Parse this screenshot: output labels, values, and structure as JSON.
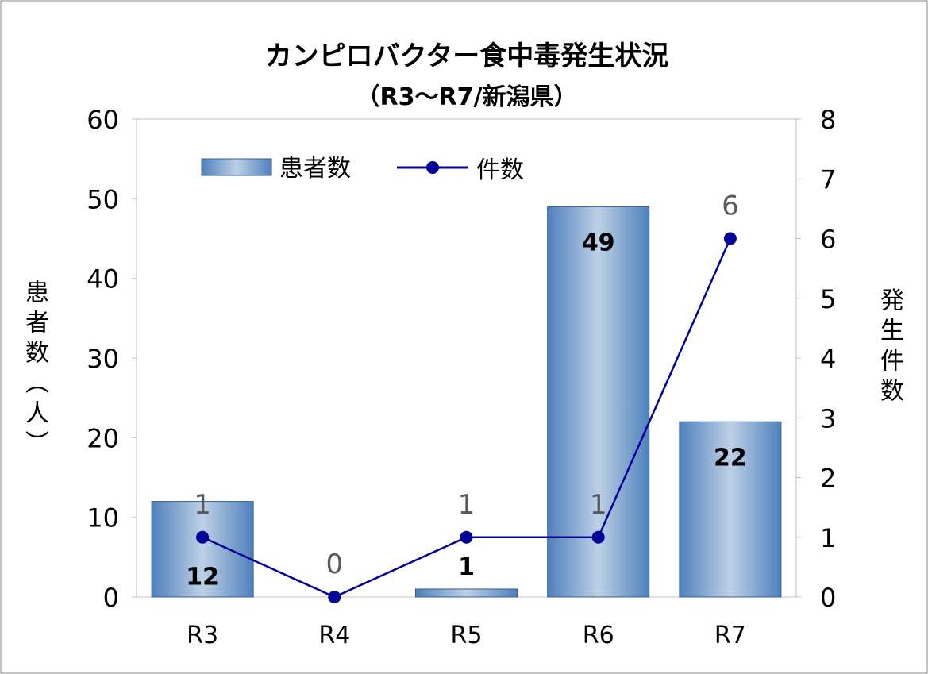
{
  "chart_data": {
    "type": "bar+line",
    "title": "カンピロバクター食中毒発生状況",
    "subtitle": "（R3～R7/新潟県）",
    "categories": [
      "R3",
      "R4",
      "R5",
      "R6",
      "R7"
    ],
    "series": [
      {
        "name": "患者数",
        "type": "bar",
        "axis": "left",
        "values": [
          12,
          0,
          1,
          49,
          22
        ],
        "labels": [
          "12",
          "",
          "1",
          "49",
          "22"
        ]
      },
      {
        "name": "件数",
        "type": "line",
        "axis": "right",
        "values": [
          1,
          0,
          1,
          1,
          6
        ],
        "labels": [
          "1",
          "0",
          "1",
          "1",
          "6"
        ]
      }
    ],
    "ylabel_left": "患者数（人）",
    "ylabel_right": "発生件数",
    "ylim_left": [
      0,
      60
    ],
    "yticks_left": [
      "0",
      "10",
      "20",
      "30",
      "40",
      "50",
      "60"
    ],
    "ylim_right": [
      0,
      8
    ],
    "yticks_right": [
      "0",
      "1",
      "2",
      "3",
      "4",
      "5",
      "6",
      "7",
      "8"
    ],
    "grid": false,
    "legend": "top-left",
    "colors": {
      "bar_edge": "#4f81bd",
      "bar_center": "#b9cde5",
      "line": "#000099",
      "line_label": "#595959"
    }
  }
}
